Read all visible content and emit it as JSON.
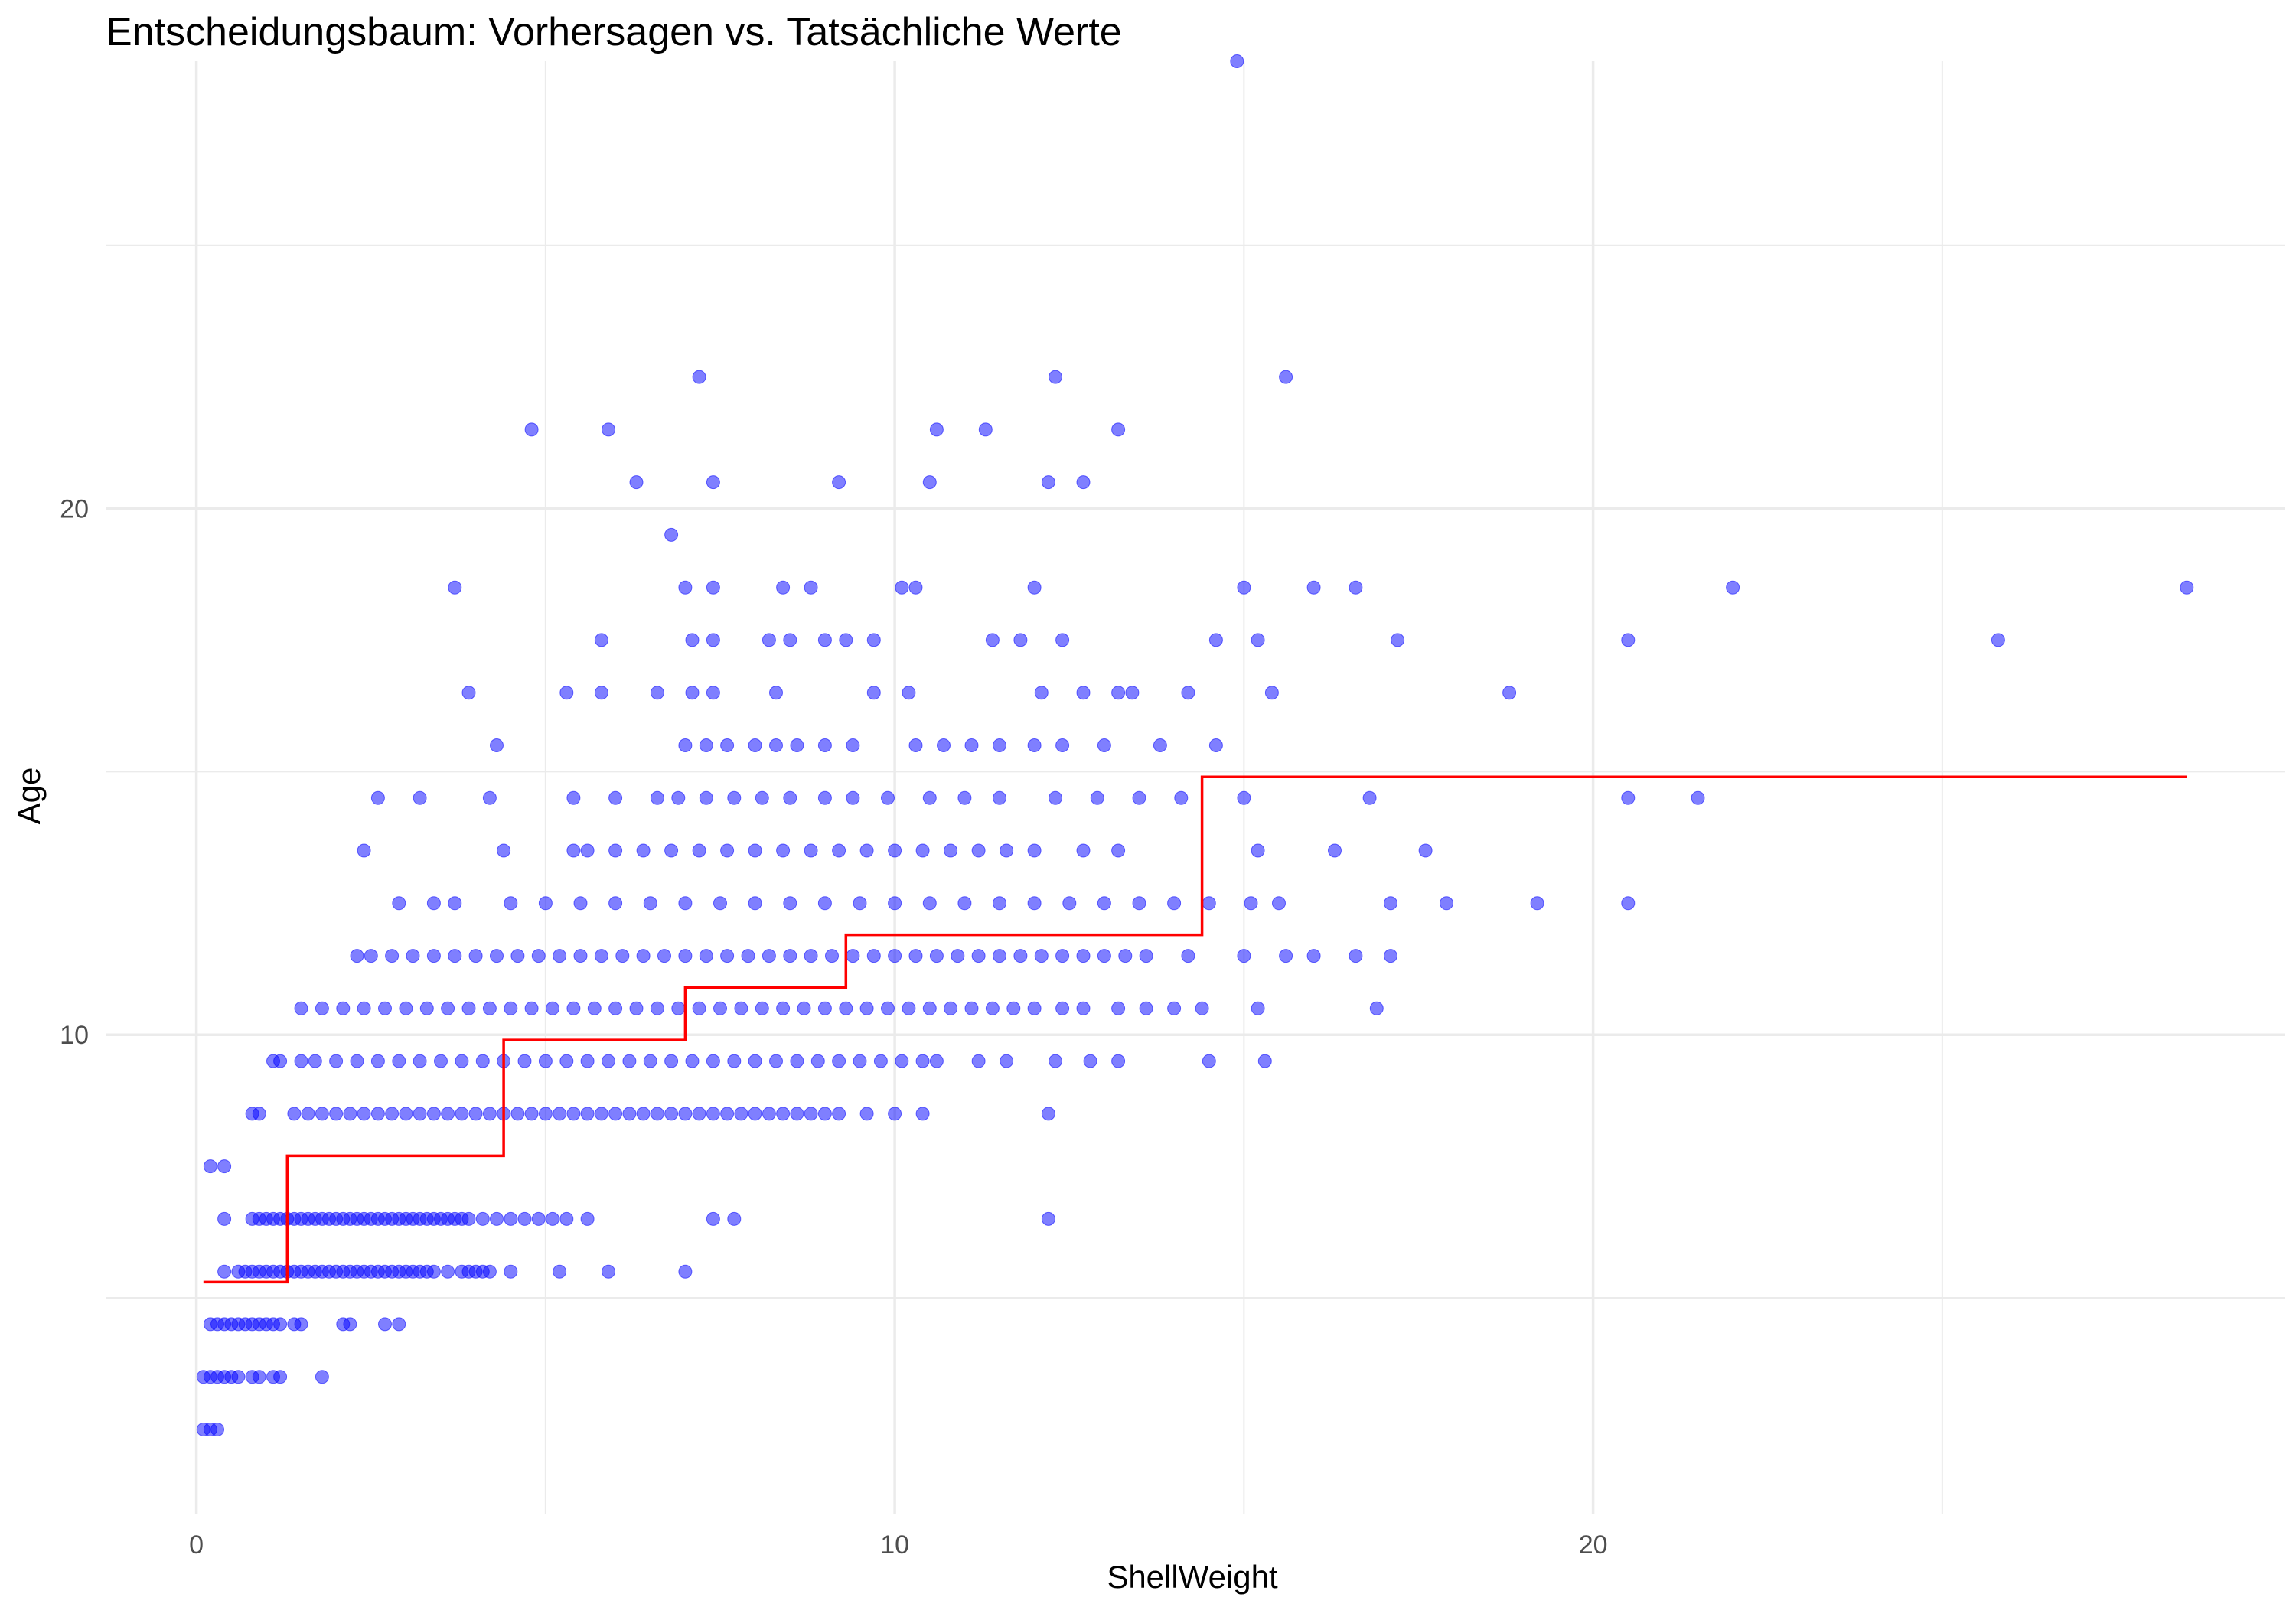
{
  "chart_data": {
    "type": "scatter",
    "title": "Entscheidungsbaum: Vorhersagen vs. Tatsächliche Werte",
    "xlabel": "ShellWeight",
    "ylabel": "Age",
    "xlim": [
      -1.3,
      29.9
    ],
    "ylim": [
      0.9,
      28.5
    ],
    "x_ticks": [
      0,
      10,
      20
    ],
    "y_ticks": [
      10,
      20
    ],
    "x_minor": [
      5,
      15,
      25
    ],
    "y_minor": [
      5,
      15,
      25
    ],
    "grid": true,
    "colors": {
      "points": "#0000ff",
      "prediction": "#ff0000",
      "grid": "#ebebeb"
    },
    "series": [
      {
        "type": "scatter",
        "rows": [
          [
            2.5,
            [
              0.1,
              0.2,
              0.3
            ]
          ],
          [
            3.5,
            [
              0.1,
              0.2,
              0.3,
              0.4,
              0.5,
              0.6,
              0.8,
              0.9,
              1.1,
              1.2,
              1.8
            ]
          ],
          [
            4.5,
            [
              0.2,
              0.3,
              0.4,
              0.5,
              0.6,
              0.7,
              0.8,
              0.9,
              1.0,
              1.1,
              1.2,
              1.4,
              1.5,
              2.1,
              2.2,
              2.7,
              2.9
            ]
          ],
          [
            5.5,
            [
              0.4,
              0.6,
              0.7,
              0.8,
              0.9,
              1.0,
              1.1,
              1.2,
              1.3,
              1.4,
              1.5,
              1.6,
              1.7,
              1.8,
              1.9,
              2.0,
              2.1,
              2.2,
              2.3,
              2.4,
              2.5,
              2.6,
              2.7,
              2.8,
              2.9,
              3.0,
              3.1,
              3.2,
              3.3,
              3.4,
              3.6,
              3.8,
              3.9,
              4.0,
              4.1,
              4.2,
              4.5,
              5.2,
              5.9,
              7.0
            ]
          ],
          [
            6.5,
            [
              0.4,
              0.8,
              0.9,
              1.0,
              1.1,
              1.2,
              1.3,
              1.4,
              1.5,
              1.6,
              1.7,
              1.8,
              1.9,
              2.0,
              2.1,
              2.2,
              2.3,
              2.4,
              2.5,
              2.6,
              2.7,
              2.8,
              2.9,
              3.0,
              3.1,
              3.2,
              3.3,
              3.4,
              3.5,
              3.6,
              3.7,
              3.8,
              3.9,
              4.1,
              4.3,
              4.5,
              4.7,
              4.9,
              5.1,
              5.3,
              5.6,
              7.4,
              7.7,
              12.2
            ]
          ],
          [
            7.5,
            [
              0.2,
              0.4
            ]
          ],
          [
            8.5,
            [
              0.8,
              0.9,
              1.4,
              1.6,
              1.8,
              2.0,
              2.2,
              2.4,
              2.6,
              2.8,
              3.0,
              3.2,
              3.4,
              3.6,
              3.8,
              4.0,
              4.2,
              4.4,
              4.6,
              4.8,
              5.0,
              5.2,
              5.4,
              5.6,
              5.8,
              6.0,
              6.2,
              6.4,
              6.6,
              6.8,
              7.0,
              7.2,
              7.4,
              7.6,
              7.8,
              8.0,
              8.2,
              8.4,
              8.6,
              8.8,
              9.0,
              9.2,
              9.6,
              10.0,
              10.4,
              12.2
            ]
          ],
          [
            9.5,
            [
              1.1,
              1.2,
              1.5,
              1.7,
              2.0,
              2.3,
              2.6,
              2.9,
              3.2,
              3.5,
              3.8,
              4.1,
              4.4,
              4.7,
              5.0,
              5.3,
              5.6,
              5.9,
              6.2,
              6.5,
              6.8,
              7.1,
              7.4,
              7.7,
              8.0,
              8.3,
              8.6,
              8.9,
              9.2,
              9.5,
              9.8,
              10.1,
              10.4,
              10.6,
              11.2,
              11.6,
              12.3,
              12.8,
              13.2,
              14.5,
              15.3
            ]
          ],
          [
            10.5,
            [
              1.5,
              1.8,
              2.1,
              2.4,
              2.7,
              3.0,
              3.3,
              3.6,
              3.9,
              4.2,
              4.5,
              4.8,
              5.1,
              5.4,
              5.7,
              6.0,
              6.3,
              6.6,
              6.9,
              7.2,
              7.5,
              7.8,
              8.1,
              8.4,
              8.7,
              9.0,
              9.3,
              9.6,
              9.9,
              10.2,
              10.5,
              10.8,
              11.1,
              11.4,
              11.7,
              12.0,
              12.4,
              12.7,
              13.2,
              13.6,
              14.0,
              14.4,
              15.2,
              16.9
            ]
          ],
          [
            11.5,
            [
              2.3,
              2.5,
              2.8,
              3.1,
              3.4,
              3.7,
              4.0,
              4.3,
              4.6,
              4.9,
              5.2,
              5.5,
              5.8,
              6.1,
              6.4,
              6.7,
              7.0,
              7.3,
              7.6,
              7.9,
              8.2,
              8.5,
              8.8,
              9.1,
              9.4,
              9.7,
              10.0,
              10.3,
              10.6,
              10.9,
              11.2,
              11.5,
              11.8,
              12.1,
              12.4,
              12.7,
              13.0,
              13.3,
              13.6,
              14.2,
              15.0,
              15.6,
              16.0,
              16.6,
              17.1
            ]
          ],
          [
            12.5,
            [
              2.9,
              3.4,
              3.7,
              4.5,
              5.0,
              5.5,
              6.0,
              6.5,
              7.0,
              7.5,
              8.0,
              8.5,
              9.0,
              9.5,
              10.0,
              10.5,
              11.0,
              11.5,
              12.0,
              12.5,
              13.0,
              13.5,
              14.0,
              14.5,
              15.1,
              15.5,
              17.1,
              17.9,
              19.2,
              20.5
            ]
          ],
          [
            13.5,
            [
              2.4,
              4.4,
              5.4,
              5.6,
              6.0,
              6.4,
              6.8,
              7.2,
              7.6,
              8.0,
              8.4,
              8.8,
              9.2,
              9.6,
              10.0,
              10.4,
              10.8,
              11.2,
              11.6,
              12.0,
              12.7,
              13.2,
              15.2,
              16.3,
              17.6
            ]
          ],
          [
            14.5,
            [
              2.6,
              3.2,
              4.2,
              5.4,
              6.0,
              6.6,
              6.9,
              7.3,
              7.7,
              8.1,
              8.5,
              9.0,
              9.4,
              9.9,
              10.5,
              11.0,
              11.5,
              12.3,
              12.9,
              13.5,
              14.1,
              15.0,
              16.8,
              20.5,
              21.5
            ]
          ],
          [
            15.5,
            [
              4.3,
              7.0,
              7.3,
              7.6,
              8.0,
              8.3,
              8.6,
              9.0,
              9.4,
              10.3,
              10.7,
              11.1,
              11.5,
              12.0,
              12.4,
              13.0,
              13.8,
              14.6
            ]
          ],
          [
            16.5,
            [
              3.9,
              5.3,
              5.8,
              6.6,
              7.1,
              7.4,
              8.3,
              9.7,
              10.2,
              12.1,
              12.7,
              13.2,
              13.4,
              14.2,
              15.4,
              18.8
            ]
          ],
          [
            17.5,
            [
              5.8,
              7.1,
              7.4,
              8.2,
              8.5,
              9.0,
              9.3,
              9.7,
              11.4,
              11.8,
              12.4,
              14.6,
              15.2,
              17.2,
              20.5,
              25.8
            ]
          ],
          [
            18.5,
            [
              3.7,
              7.0,
              7.4,
              8.4,
              8.8,
              10.1,
              10.3,
              12.0,
              15.0,
              16.0,
              16.6,
              22.0,
              28.5
            ]
          ],
          [
            19.5,
            [
              6.8
            ]
          ],
          [
            20.5,
            [
              6.3,
              7.4,
              9.2,
              10.5,
              12.2,
              12.7
            ]
          ],
          [
            21.5,
            [
              4.8,
              5.9,
              10.6,
              11.3,
              13.2
            ]
          ],
          [
            22.5,
            [
              7.2,
              12.3,
              15.6
            ]
          ],
          [
            28.5,
            [
              14.9
            ]
          ]
        ]
      },
      {
        "type": "step",
        "x": [
          0.1,
          1.3,
          4.4,
          7.0,
          9.3,
          14.4,
          28.5
        ],
        "y": [
          5.3,
          7.7,
          9.9,
          10.9,
          11.9,
          14.9,
          14.9
        ]
      }
    ]
  }
}
